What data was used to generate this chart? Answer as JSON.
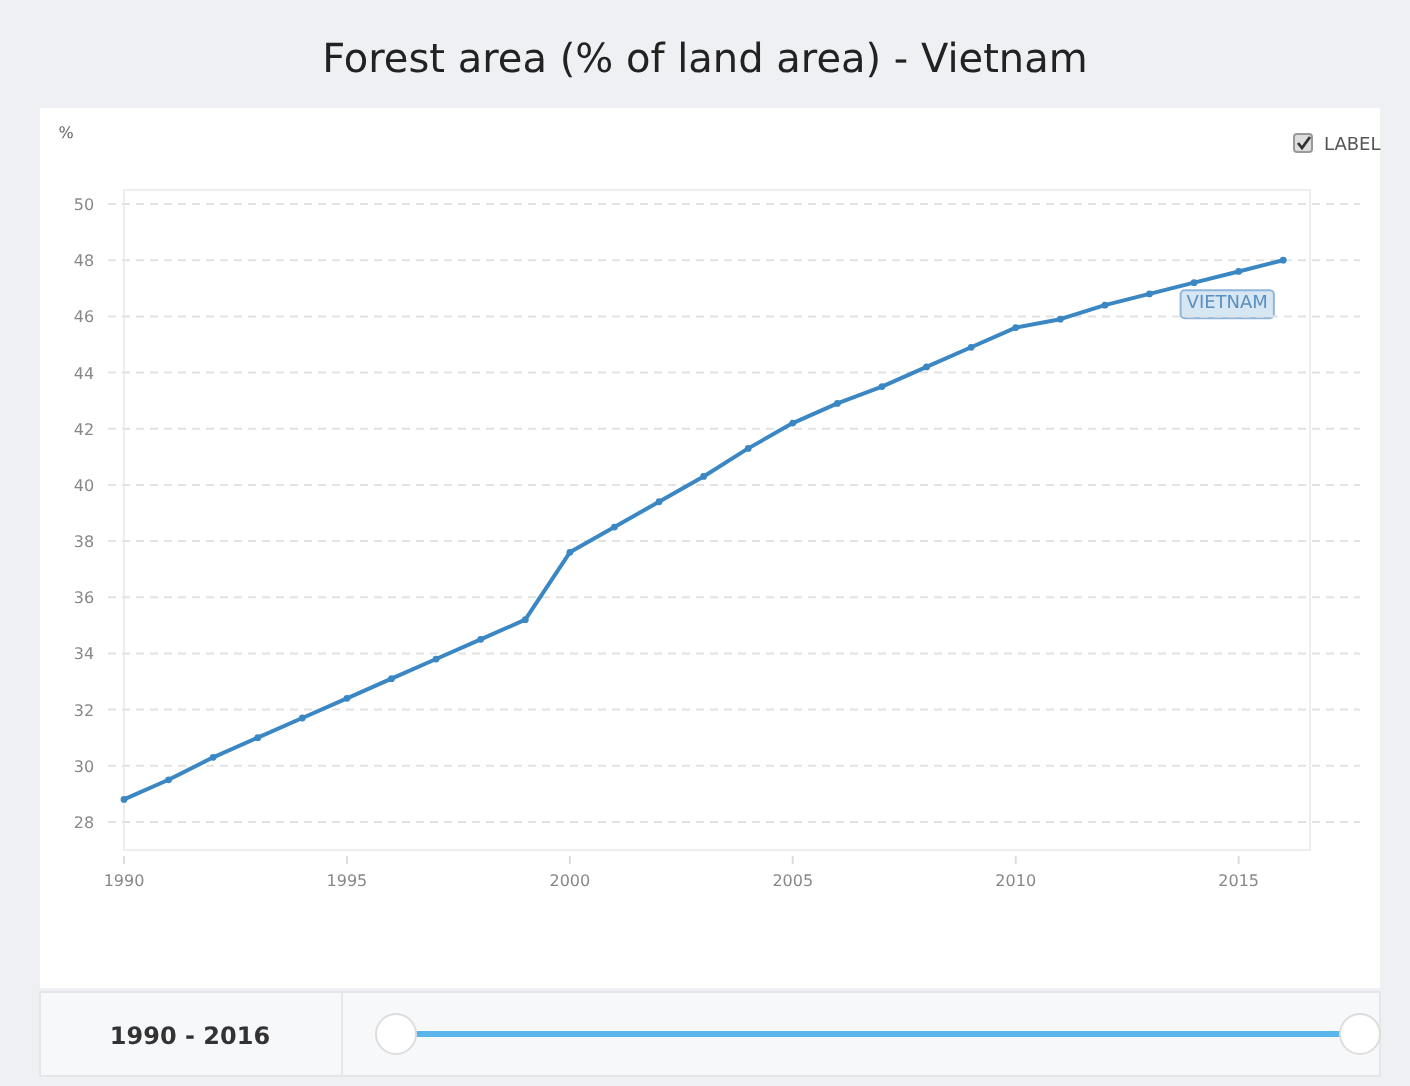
{
  "chart_data": {
    "type": "line",
    "title": "Forest area (% of land area) - Vietnam",
    "ylabel": "%",
    "x": [
      1990,
      1991,
      1992,
      1993,
      1994,
      1995,
      1996,
      1997,
      1998,
      1999,
      2000,
      2001,
      2002,
      2003,
      2004,
      2005,
      2006,
      2007,
      2008,
      2009,
      2010,
      2011,
      2012,
      2013,
      2014,
      2015,
      2016
    ],
    "series": [
      {
        "name": "VIETNAM",
        "color": "#3a87c4",
        "values": [
          28.8,
          29.5,
          30.3,
          31.0,
          31.7,
          32.4,
          33.1,
          33.8,
          34.5,
          35.2,
          37.6,
          38.5,
          39.4,
          40.3,
          41.3,
          42.2,
          42.9,
          43.5,
          44.2,
          44.9,
          45.6,
          45.9,
          46.4,
          46.8,
          47.2,
          47.6,
          48.0
        ]
      }
    ],
    "xlim": [
      1990,
      2016.6
    ],
    "xticks": [
      1990,
      1995,
      2000,
      2005,
      2010,
      2015
    ],
    "ylim": [
      27,
      50.5
    ],
    "yticks": [
      28,
      30,
      32,
      34,
      36,
      38,
      40,
      42,
      44,
      46,
      48,
      50
    ],
    "grid": "y",
    "marker": "circle",
    "line_style": "solid",
    "annotations": [
      "LABEL",
      "1990 - 2016"
    ]
  }
}
